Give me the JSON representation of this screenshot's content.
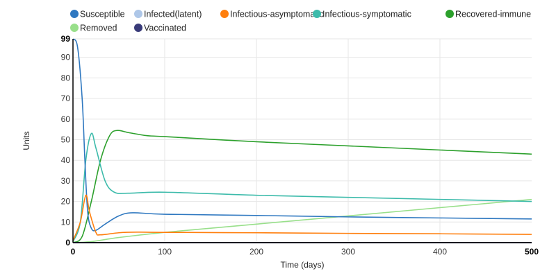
{
  "chart_data": {
    "type": "line",
    "xlabel": "Time (days)",
    "ylabel": "Units",
    "xlim": [
      0,
      500
    ],
    "ylim": [
      0,
      99
    ],
    "x_ticks": [
      "0",
      "100",
      "200",
      "300",
      "400",
      "500"
    ],
    "y_ticks": [
      "0",
      "10",
      "20",
      "30",
      "40",
      "50",
      "60",
      "70",
      "80",
      "90",
      "99"
    ],
    "grid": true,
    "legend_position": "top",
    "series": [
      {
        "name": "Susceptible",
        "color": "#2f78c0",
        "x": [
          0,
          5,
          10,
          13,
          16,
          20,
          25,
          35,
          50,
          65,
          100,
          200,
          300,
          400,
          500
        ],
        "y": [
          99,
          95,
          70,
          40,
          15,
          7,
          6,
          9,
          13,
          14.5,
          13.8,
          13.2,
          12.5,
          12,
          11.5
        ]
      },
      {
        "name": "Infected(latent)",
        "color": "#aec7e8",
        "x": [
          0,
          500
        ],
        "y": [
          0,
          0
        ]
      },
      {
        "name": "Infectious-asymptomatic",
        "color": "#ff7f0e",
        "x": [
          0,
          8,
          14,
          18,
          25,
          30,
          50,
          70,
          100,
          200,
          300,
          400,
          500
        ],
        "y": [
          1,
          10,
          23,
          15,
          5,
          3.8,
          4.8,
          5.1,
          5,
          4.8,
          4.5,
          4.3,
          4
        ]
      },
      {
        "name": "Infectious-symptomatic",
        "color": "#3dbbab",
        "x": [
          0,
          8,
          14,
          20,
          25,
          35,
          45,
          60,
          100,
          200,
          300,
          400,
          500
        ],
        "y": [
          0.5,
          10,
          40,
          53,
          46,
          30,
          24.5,
          24,
          24.5,
          23,
          22,
          21,
          20
        ]
      },
      {
        "name": "Recovered-immune",
        "color": "#2ca02c",
        "x": [
          0,
          10,
          20,
          30,
          40,
          48,
          60,
          80,
          100,
          200,
          300,
          400,
          500
        ],
        "y": [
          0,
          3,
          20,
          40,
          52,
          54.5,
          53.5,
          52,
          51.5,
          49,
          47,
          45,
          43
        ]
      },
      {
        "name": "Removed",
        "color": "#98df8a",
        "x": [
          0,
          20,
          50,
          100,
          200,
          300,
          400,
          500
        ],
        "y": [
          0,
          0.5,
          2.5,
          5,
          9,
          13,
          17,
          21
        ]
      },
      {
        "name": "Vaccinated",
        "color": "#393b79",
        "x": [
          0,
          500
        ],
        "y": [
          0,
          0
        ]
      }
    ]
  }
}
